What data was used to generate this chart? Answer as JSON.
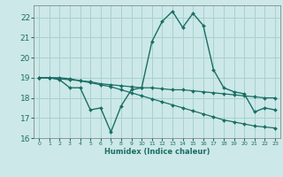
{
  "xlabel": "Humidex (Indice chaleur)",
  "ylabel": "",
  "xlim": [
    -0.5,
    23.5
  ],
  "ylim": [
    16,
    22.6
  ],
  "yticks": [
    16,
    17,
    18,
    19,
    20,
    21,
    22
  ],
  "xticks": [
    0,
    1,
    2,
    3,
    4,
    5,
    6,
    7,
    8,
    9,
    10,
    11,
    12,
    13,
    14,
    15,
    16,
    17,
    18,
    19,
    20,
    21,
    22,
    23
  ],
  "bg_color": "#cce8e8",
  "grid_color": "#aad0d0",
  "line_color": "#1a6e64",
  "line1_x": [
    0,
    1,
    2,
    3,
    4,
    5,
    6,
    7,
    8,
    9,
    10,
    11,
    12,
    13,
    14,
    15,
    16,
    17,
    18,
    19,
    20,
    21,
    22,
    23
  ],
  "line1_y": [
    19.0,
    19.0,
    18.9,
    18.5,
    18.5,
    17.4,
    17.5,
    16.3,
    17.6,
    18.4,
    18.5,
    20.8,
    21.8,
    22.3,
    21.5,
    22.2,
    21.6,
    19.4,
    18.5,
    18.3,
    18.2,
    17.3,
    17.5,
    17.4
  ],
  "line2_x": [
    0,
    1,
    2,
    3,
    4,
    5,
    6,
    7,
    8,
    9,
    10,
    11,
    12,
    13,
    14,
    15,
    16,
    17,
    18,
    19,
    20,
    21,
    22,
    23
  ],
  "line2_y": [
    19.0,
    19.0,
    19.0,
    18.95,
    18.85,
    18.8,
    18.7,
    18.65,
    18.6,
    18.55,
    18.5,
    18.5,
    18.45,
    18.4,
    18.4,
    18.35,
    18.3,
    18.25,
    18.2,
    18.15,
    18.1,
    18.05,
    18.0,
    18.0
  ],
  "line3_x": [
    0,
    1,
    2,
    3,
    4,
    5,
    6,
    7,
    8,
    9,
    10,
    11,
    12,
    13,
    14,
    15,
    16,
    17,
    18,
    19,
    20,
    21,
    22,
    23
  ],
  "line3_y": [
    19.0,
    19.0,
    18.95,
    18.9,
    18.85,
    18.75,
    18.65,
    18.55,
    18.4,
    18.25,
    18.1,
    17.95,
    17.8,
    17.65,
    17.5,
    17.35,
    17.2,
    17.05,
    16.9,
    16.8,
    16.7,
    16.6,
    16.55,
    16.5
  ]
}
